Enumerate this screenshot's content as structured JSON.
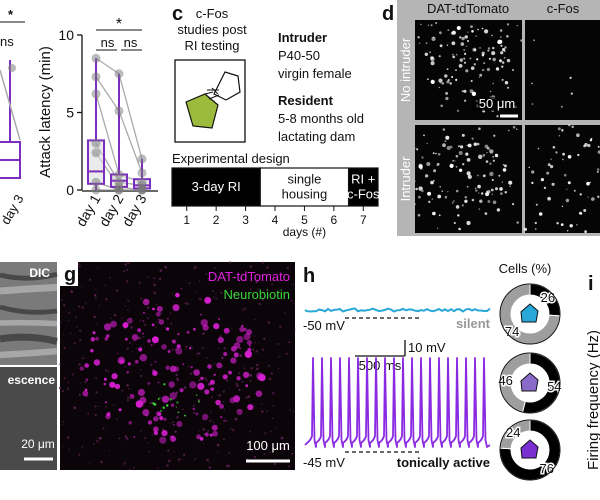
{
  "partial_panel": {
    "significance": [
      "*",
      "ns"
    ],
    "category": "day 3"
  },
  "chart_data": [
    {
      "type": "box",
      "ylabel": "Attack latency (min)",
      "categories": [
        "day 1",
        "day 2",
        "day 3"
      ],
      "ylim": [
        0,
        10
      ],
      "yticks": [
        0,
        5,
        10
      ],
      "color": "#7b2fbe",
      "boxes": [
        {
          "min": 0,
          "q1": 0.4,
          "median": 1.2,
          "q3": 3.2,
          "max": 8.5
        },
        {
          "min": 0,
          "q1": 0.2,
          "median": 0.6,
          "q3": 1,
          "max": 7.5
        },
        {
          "min": 0,
          "q1": 0.1,
          "median": 0.3,
          "q3": 0.7,
          "max": 2
        }
      ],
      "points": [
        [
          8.5,
          7.3,
          6.2,
          3,
          2.4,
          0.5,
          0
        ],
        [
          7.5,
          5.1,
          1,
          0.5,
          0.2,
          0,
          0
        ],
        [
          2,
          1.1,
          0.5,
          0.3,
          0,
          0,
          0
        ]
      ],
      "significance": [
        "*",
        "ns",
        "ns"
      ]
    },
    {
      "type": "donut",
      "values": [
        26,
        74
      ],
      "colors": [
        "#000000",
        "#9e9e9e"
      ],
      "icon_color": "#29a8d8"
    },
    {
      "type": "donut",
      "values": [
        54,
        46
      ],
      "colors": [
        "#000000",
        "#9e9e9e"
      ],
      "icon_color": "#8a6bc9"
    },
    {
      "type": "donut",
      "values": [
        76,
        24
      ],
      "colors": [
        "#000000",
        "#9e9e9e"
      ],
      "icon_color": "#7a2fd0"
    }
  ],
  "panel_c": {
    "label": "c",
    "caption": [
      "c-Fos",
      "studies post",
      "RI testing"
    ],
    "intruder": {
      "title": "Intruder",
      "lines": [
        "P40-50",
        "virgin female"
      ]
    },
    "resident": {
      "title": "Resident",
      "lines": [
        "5-8 months old",
        "lactating dam"
      ]
    },
    "timeline": {
      "title": "Experimental design",
      "phases": [
        [
          "3-day RI"
        ],
        [
          "single",
          "housing"
        ],
        [
          "RI +",
          "c-Fos"
        ]
      ],
      "days": [
        1,
        2,
        3,
        4,
        5,
        6,
        7
      ],
      "xlabel": "days (#)"
    }
  },
  "panel_d": {
    "label": "d",
    "columns": [
      "DAT-tdTomato",
      "c-Fos"
    ],
    "rows": [
      "No intruder",
      "Intruder"
    ],
    "scale": "50 μm"
  },
  "panel_f": {
    "labels": [
      "DIC",
      "escence"
    ],
    "scale": "20 μm"
  },
  "panel_g": {
    "label": "g",
    "channels": [
      "DAT-tdTomato",
      "Neurobiotin"
    ],
    "scale": "100 μm"
  },
  "panel_h": {
    "label": "h",
    "legend_title": "Cells (%)",
    "traces": [
      {
        "potential": "-50 mV",
        "state": "silent"
      },
      {
        "potential": "-45 mV",
        "state": "tonically active"
      }
    ],
    "scale_time": "500 ms",
    "scale_voltage": "10 mV"
  },
  "panel_i": {
    "label": "i",
    "ylabel": "Firing frequency (Hz)"
  }
}
